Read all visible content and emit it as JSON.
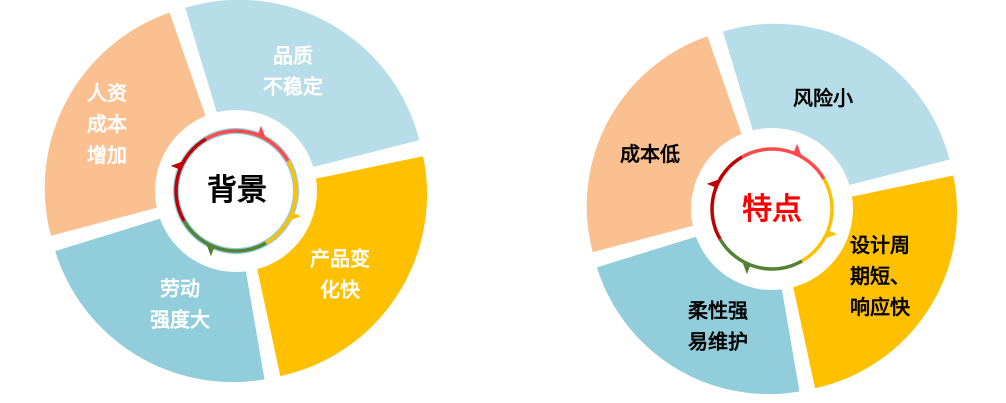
{
  "colors": {
    "light_blue": "#B7DDE8",
    "yellow": "#FFC000",
    "blue": "#92CDDC",
    "peach": "#FAC090",
    "ring_red": "#C00000",
    "ring_pink": "#FF4B4B",
    "ring_green": "#548235"
  },
  "left": {
    "center": "背景",
    "segments": [
      {
        "lines": [
          "品质",
          "不稳定"
        ],
        "color": "#B7DDE8"
      },
      {
        "lines": [
          "产品变",
          "化快"
        ],
        "color": "#FFC000"
      },
      {
        "lines": [
          "劳动",
          "强度大"
        ],
        "color": "#92CDDC"
      },
      {
        "lines": [
          "人资",
          "成本",
          "增加"
        ],
        "color": "#FAC090"
      }
    ]
  },
  "right": {
    "center": "特点",
    "segments": [
      {
        "lines": [
          "风险小"
        ],
        "color": "#B7DDE8"
      },
      {
        "lines": [
          "设计周",
          "期短、",
          "响应快"
        ],
        "color": "#FFC000"
      },
      {
        "lines": [
          "柔性强",
          "易维护"
        ],
        "color": "#92CDDC"
      },
      {
        "lines": [
          "成本低"
        ],
        "color": "#FAC090"
      }
    ]
  }
}
